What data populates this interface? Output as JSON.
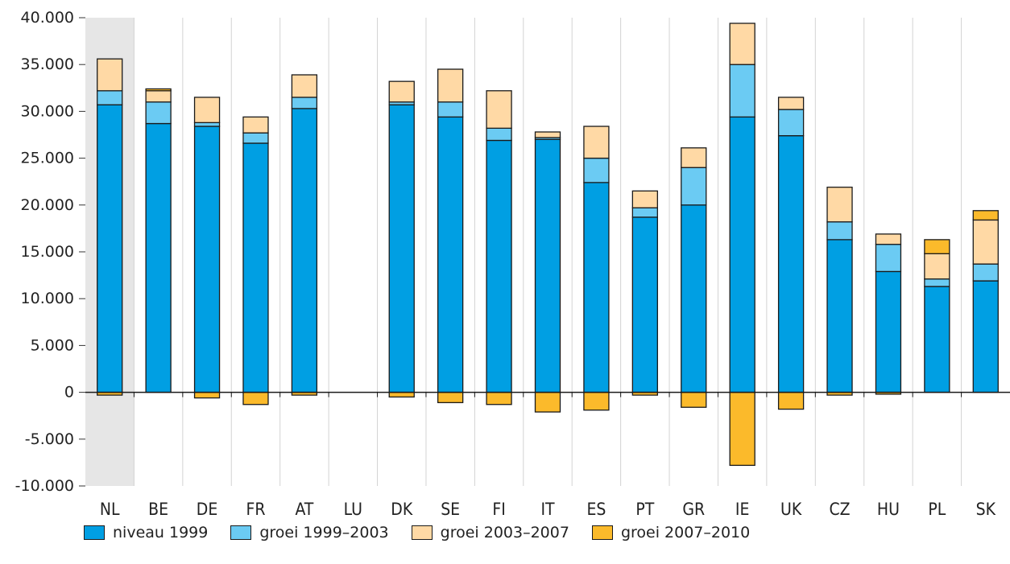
{
  "chart_data": {
    "type": "bar",
    "stacked": true,
    "categories": [
      "NL",
      "BE",
      "DE",
      "FR",
      "AT",
      "LU",
      "DK",
      "SE",
      "FI",
      "IT",
      "ES",
      "PT",
      "GR",
      "IE",
      "UK",
      "CZ",
      "HU",
      "PL",
      "SK"
    ],
    "highlight_category": "NL",
    "ylim": [
      -10000,
      40000
    ],
    "yticks": [
      -10000,
      -5000,
      0,
      5000,
      10000,
      15000,
      20000,
      25000,
      30000,
      35000,
      40000
    ],
    "ytick_labels": [
      "-10.000",
      "-5.000",
      "0",
      "5.000",
      "10.000",
      "15.000",
      "20.000",
      "25.000",
      "30.000",
      "35.000",
      "40.000"
    ],
    "grid": "vertical",
    "legend_position": "bottom",
    "series": [
      {
        "name": "niveau 1999",
        "color": "#009fe3",
        "values": [
          30700,
          28700,
          28400,
          26600,
          30300,
          0,
          30700,
          29400,
          26900,
          27000,
          22400,
          18700,
          20000,
          29400,
          27400,
          16300,
          12900,
          11300,
          11900
        ]
      },
      {
        "name": "groei 1999–2003",
        "color": "#6bcbf3",
        "values": [
          1500,
          2300,
          400,
          1100,
          1200,
          0,
          300,
          1600,
          1300,
          200,
          2600,
          1000,
          4000,
          5600,
          2800,
          1900,
          2900,
          800,
          1800
        ]
      },
      {
        "name": "groei 2003–2007",
        "color": "#ffd9a5",
        "values": [
          3400,
          1200,
          2700,
          1700,
          2400,
          0,
          2200,
          3500,
          4000,
          600,
          3400,
          1800,
          2100,
          4400,
          1300,
          3700,
          1100,
          2700,
          4700
        ]
      },
      {
        "name": "groei 2007–2010",
        "color": "#fbba2b",
        "values": [
          -300,
          200,
          -600,
          -1300,
          -300,
          0,
          -500,
          -1100,
          -1300,
          -2100,
          -1900,
          -300,
          -1600,
          -7800,
          -1800,
          -300,
          -200,
          1500,
          1000
        ]
      }
    ]
  }
}
